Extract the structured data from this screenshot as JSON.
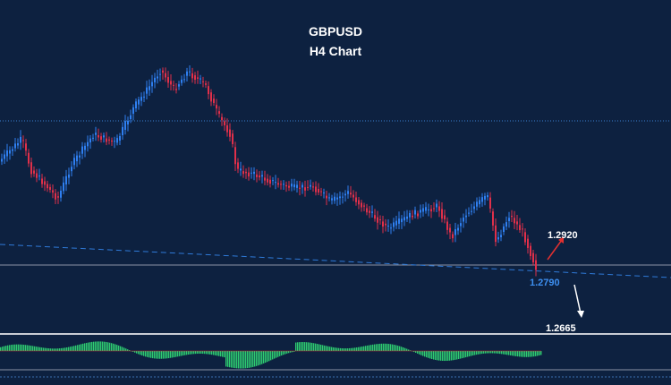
{
  "header": {
    "symbol": "GBPUSD",
    "timeframe": "H4 Chart"
  },
  "levels": {
    "target_up": "1.2920",
    "current": "1.2790",
    "target_down": "1.2665"
  }
}
